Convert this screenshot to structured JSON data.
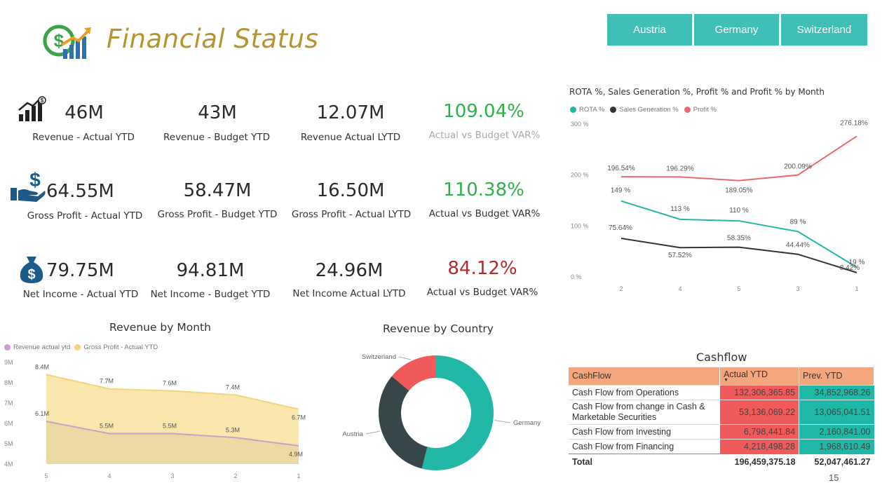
{
  "header": {
    "title": "Financial Status"
  },
  "filters": [
    "Austria",
    "Germany",
    "Switzerland"
  ],
  "kpis": {
    "revenue": [
      {
        "value": "46M",
        "label": "Revenue - Actual YTD"
      },
      {
        "value": "43M",
        "label": "Revenue - Budget YTD"
      },
      {
        "value": "12.07M",
        "label": "Revenue Actual LYTD"
      },
      {
        "value": "109.04%",
        "label": "Actual vs Budget VAR%"
      }
    ],
    "gross": [
      {
        "value": "64.55M",
        "label": "Gross Profit - Actual YTD"
      },
      {
        "value": "58.47M",
        "label": "Gross Profit - Budget YTD"
      },
      {
        "value": "16.50M",
        "label": "Gross Profit - Actual LYTD"
      },
      {
        "value": "110.38%",
        "label": "Actual vs Budget VAR%"
      }
    ],
    "net": [
      {
        "value": "79.75M",
        "label": "Net Income - Actual YTD"
      },
      {
        "value": "94.81M",
        "label": "Net Income - Budget YTD"
      },
      {
        "value": "24.96M",
        "label": "Net Income Actual LYTD"
      },
      {
        "value": "84.12%",
        "label": "Actual vs Budget VAR%"
      }
    ],
    "colors": {
      "positive": "#2db34a",
      "negative": "#b52a2a",
      "muted_label": "#aaaaaa"
    }
  },
  "colors": {
    "accent": "#3fbfb5",
    "title": "#b5952f",
    "rota": "#22b8a8",
    "sales_gen": "#333333",
    "profit": "#e86a6a",
    "rev_actual": "#c9a0c9",
    "gross_actual": "#f3d57a"
  },
  "chart_data": [
    {
      "type": "line",
      "title": "ROTA %, Sales Generation %, Profit % and Profit % by Month",
      "categories": [
        "2",
        "4",
        "5",
        "3",
        "1"
      ],
      "ylim": [
        0,
        300
      ],
      "yticks": [
        "0 %",
        "100 %",
        "200 %",
        "300 %"
      ],
      "legend": "top-left",
      "series": [
        {
          "name": "ROTA %",
          "values": [
            149,
            113,
            110,
            89,
            19
          ],
          "labels": [
            "149 %",
            "113 %",
            "110 %",
            "89 %",
            "19 %"
          ]
        },
        {
          "name": "Sales Generation %",
          "values": [
            75.64,
            57.52,
            58.35,
            44.44,
            8.42
          ],
          "labels": [
            "75.64%",
            "57.52%",
            "58.35%",
            "44.44%",
            "8.42%"
          ]
        },
        {
          "name": "Profit %",
          "values": [
            196.54,
            196.29,
            189.05,
            200.09,
            276.18
          ],
          "labels": [
            "196.54%",
            "196.29%",
            "189.05%",
            "200.09%",
            "276.18%"
          ]
        }
      ]
    },
    {
      "type": "area",
      "title": "Revenue by Month",
      "categories": [
        "5",
        "4",
        "3",
        "2",
        "1"
      ],
      "ylim": [
        4,
        9
      ],
      "yticks": [
        "4M",
        "5M",
        "6M",
        "7M",
        "8M",
        "9M"
      ],
      "legend": "top-left",
      "series": [
        {
          "name": "Revenue actual ytd",
          "values": [
            6.1,
            5.5,
            5.5,
            5.3,
            4.9
          ],
          "labels": [
            "6.1M",
            "5.5M",
            "5.5M",
            "5.3M",
            "4.9M"
          ]
        },
        {
          "name": "Gross Profit - Actual YTD",
          "values": [
            8.4,
            7.7,
            7.6,
            7.4,
            6.7
          ],
          "labels": [
            "8.4M",
            "7.7M",
            "7.6M",
            "7.4M",
            "6.7M"
          ]
        }
      ]
    },
    {
      "type": "pie",
      "title": "Revenue by Country",
      "slices": [
        {
          "label": "Germany",
          "value": 54,
          "color": "#22b8a8"
        },
        {
          "label": "Austria",
          "value": 32,
          "color": "#374649"
        },
        {
          "label": "Switzerland",
          "value": 14,
          "color": "#f05a5a"
        }
      ]
    },
    {
      "type": "table",
      "title": "Cashflow",
      "columns": [
        "CashFlow",
        "Actual YTD",
        "Prev. YTD"
      ],
      "rows": [
        [
          "Cash Flow from Operations",
          "132,306,365.85",
          "34,852,968.26"
        ],
        [
          "Cash Flow from change in Cash & Marketable Securities",
          "53,136,069.22",
          "13,065,041.51"
        ],
        [
          "Cash Flow from Investing",
          "6,798,441.84",
          "2,160,841.00"
        ],
        [
          "Cash Flow from Financing",
          "4,218,498.28",
          "1,968,610.49"
        ]
      ],
      "total": [
        "Total",
        "196,459,375.18",
        "52,047,461.27"
      ]
    }
  ],
  "page_number": "15"
}
